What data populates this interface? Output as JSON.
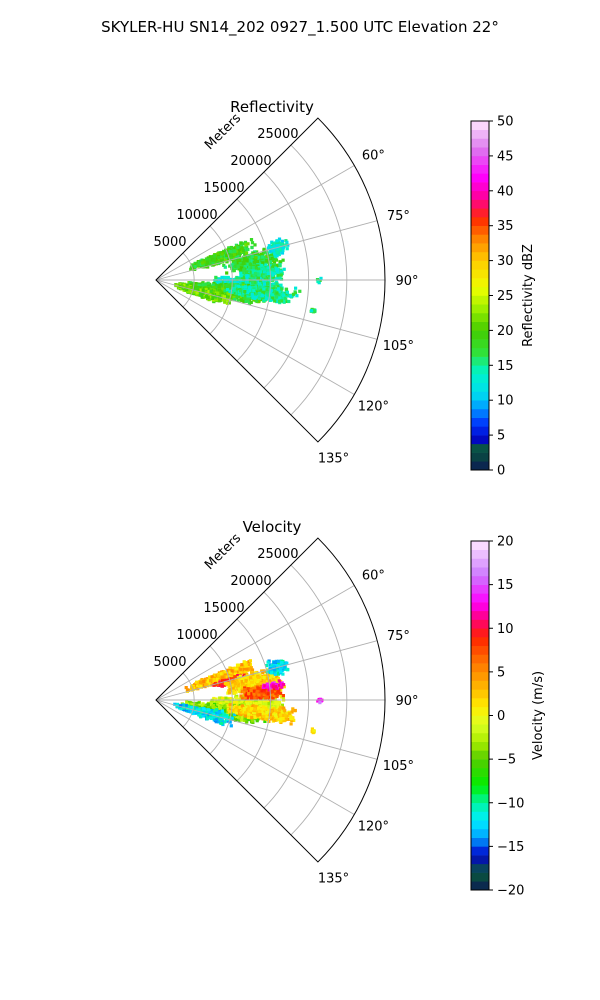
{
  "figure": {
    "suptitle": "SKYLER-HU  SN14_202  0927_1.500 UTC Elevation 22°"
  },
  "chart_data": [
    {
      "type": "heatmap",
      "subtype": "polar-sector",
      "title": "Reflectivity",
      "radial_label": "Meters",
      "radial_ticks": [
        5000,
        10000,
        15000,
        20000,
        25000
      ],
      "radial_tick_labels": [
        "5000",
        "10000",
        "15000",
        "20000",
        "25000"
      ],
      "angle_range_deg": [
        45,
        135
      ],
      "angle_ticks": [
        60,
        75,
        90,
        105,
        120,
        135
      ],
      "angle_tick_labels": [
        "60°",
        "75°",
        "90°",
        "105°",
        "120°",
        "135°"
      ],
      "rmax": 30000,
      "grid": true,
      "colorbar": {
        "label": "Reflectivity dBZ",
        "range": [
          0,
          50
        ],
        "ticks": [
          0,
          5,
          10,
          15,
          20,
          25,
          30,
          35,
          40,
          45,
          50
        ],
        "tick_labels": [
          "0",
          "5",
          "10",
          "15",
          "20",
          "25",
          "30",
          "35",
          "40",
          "45",
          "50"
        ],
        "stops": [
          {
            "v": 0,
            "c": "#0b1a55"
          },
          {
            "v": 3,
            "c": "#0a5a3a"
          },
          {
            "v": 4.5,
            "c": "#0000cc"
          },
          {
            "v": 7,
            "c": "#0044ff"
          },
          {
            "v": 9,
            "c": "#00a0ff"
          },
          {
            "v": 11,
            "c": "#00ddee"
          },
          {
            "v": 14,
            "c": "#00f5c8"
          },
          {
            "v": 17,
            "c": "#33e033"
          },
          {
            "v": 20,
            "c": "#44cc00"
          },
          {
            "v": 23,
            "c": "#99ee00"
          },
          {
            "v": 26,
            "c": "#eeff00"
          },
          {
            "v": 30,
            "c": "#ffcc00"
          },
          {
            "v": 33,
            "c": "#ff8800"
          },
          {
            "v": 36,
            "c": "#ff2a00"
          },
          {
            "v": 39,
            "c": "#ff0099"
          },
          {
            "v": 42,
            "c": "#ff00ff"
          },
          {
            "v": 46,
            "c": "#dd77ee"
          },
          {
            "v": 50,
            "c": "#ffe8ff"
          }
        ]
      },
      "echo_cells": [
        {
          "az": 71,
          "r": 9000,
          "daz": 5,
          "dr": 5000,
          "v": 19
        },
        {
          "az": 80,
          "r": 13000,
          "daz": 6,
          "dr": 4000,
          "v": 18
        },
        {
          "az": 92,
          "r": 12000,
          "daz": 5,
          "dr": 5000,
          "v": 14
        },
        {
          "az": 99,
          "r": 9000,
          "daz": 6,
          "dr": 6000,
          "v": 19
        },
        {
          "az": 105,
          "r": 6500,
          "daz": 6,
          "dr": 4000,
          "v": 21
        },
        {
          "az": 97,
          "r": 14000,
          "daz": 4,
          "dr": 5000,
          "v": 15
        },
        {
          "az": 86,
          "r": 14000,
          "daz": 4,
          "dr": 3000,
          "v": 15
        },
        {
          "az": 75,
          "r": 16500,
          "daz": 4,
          "dr": 1500,
          "v": 13
        },
        {
          "az": 90,
          "r": 21500,
          "daz": 1,
          "dr": 400,
          "v": 14
        },
        {
          "az": 101,
          "r": 21000,
          "daz": 1,
          "dr": 400,
          "v": 15
        }
      ]
    },
    {
      "type": "heatmap",
      "subtype": "polar-sector",
      "title": "Velocity",
      "radial_label": "Meters",
      "radial_ticks": [
        5000,
        10000,
        15000,
        20000,
        25000
      ],
      "radial_tick_labels": [
        "5000",
        "10000",
        "15000",
        "20000",
        "25000"
      ],
      "angle_range_deg": [
        45,
        135
      ],
      "angle_ticks": [
        60,
        75,
        90,
        105,
        120,
        135
      ],
      "angle_tick_labels": [
        "60°",
        "75°",
        "90°",
        "105°",
        "120°",
        "135°"
      ],
      "rmax": 30000,
      "grid": true,
      "colorbar": {
        "label": "Velocity (m/s)",
        "range": [
          -20,
          20
        ],
        "ticks": [
          -20,
          -15,
          -10,
          -5,
          0,
          5,
          10,
          15,
          20
        ],
        "tick_labels": [
          "−20",
          "−15",
          "−10",
          "−5",
          "0",
          "5",
          "10",
          "15",
          "20"
        ],
        "stops": [
          {
            "v": -20,
            "c": "#0b1a55"
          },
          {
            "v": -18,
            "c": "#0a5a3a"
          },
          {
            "v": -16,
            "c": "#0000cc"
          },
          {
            "v": -14,
            "c": "#00a0ff"
          },
          {
            "v": -12,
            "c": "#00eeff"
          },
          {
            "v": -10,
            "c": "#00f5a0"
          },
          {
            "v": -8,
            "c": "#00ee00"
          },
          {
            "v": -5,
            "c": "#55cc00"
          },
          {
            "v": -3,
            "c": "#aaee00"
          },
          {
            "v": -1,
            "c": "#ddff22"
          },
          {
            "v": 1,
            "c": "#ffee00"
          },
          {
            "v": 3,
            "c": "#ffbb00"
          },
          {
            "v": 6,
            "c": "#ff7700"
          },
          {
            "v": 9,
            "c": "#ff2200"
          },
          {
            "v": 11,
            "c": "#ff0077"
          },
          {
            "v": 13,
            "c": "#ff00ff"
          },
          {
            "v": 16,
            "c": "#cc77ff"
          },
          {
            "v": 20,
            "c": "#ffe8ff"
          }
        ]
      },
      "echo_cells": [
        {
          "az": 71,
          "r": 9000,
          "daz": 5,
          "dr": 5000,
          "v": 3
        },
        {
          "az": 76,
          "r": 10500,
          "daz": 3,
          "dr": 3000,
          "v": 9
        },
        {
          "az": 80,
          "r": 13000,
          "daz": 6,
          "dr": 4000,
          "v": 2
        },
        {
          "az": 92,
          "r": 12000,
          "daz": 5,
          "dr": 5000,
          "v": -1
        },
        {
          "az": 99,
          "r": 9000,
          "daz": 6,
          "dr": 6000,
          "v": -4
        },
        {
          "az": 105,
          "r": 6500,
          "daz": 6,
          "dr": 4000,
          "v": -12
        },
        {
          "az": 97,
          "r": 14000,
          "daz": 4,
          "dr": 5000,
          "v": 2
        },
        {
          "az": 86,
          "r": 14000,
          "daz": 4,
          "dr": 3000,
          "v": 7
        },
        {
          "az": 83,
          "r": 15500,
          "daz": 2,
          "dr": 1500,
          "v": 13
        },
        {
          "az": 75,
          "r": 16500,
          "daz": 4,
          "dr": 1500,
          "v": -12
        },
        {
          "az": 90,
          "r": 21500,
          "daz": 1,
          "dr": 400,
          "v": 14
        },
        {
          "az": 101,
          "r": 21000,
          "daz": 1,
          "dr": 400,
          "v": 1
        }
      ]
    }
  ]
}
